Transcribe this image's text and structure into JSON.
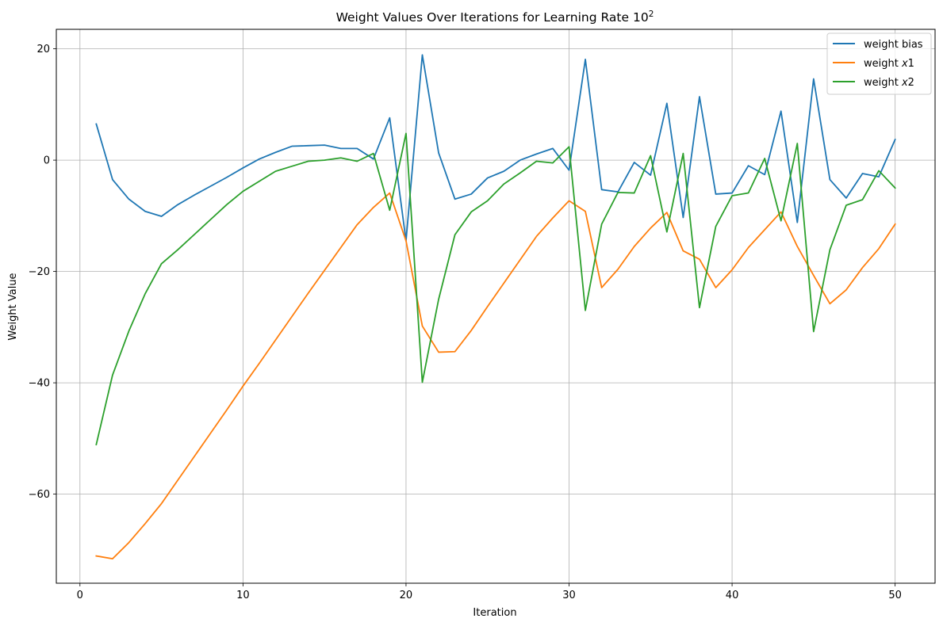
{
  "chart_data": {
    "type": "line",
    "title": "Weight Values Over Iterations for Learning Rate 10",
    "title_superscript": "2",
    "xlabel": "Iteration",
    "ylabel": "Weight Value",
    "xlim": [
      -1.45,
      52.45
    ],
    "ylim": [
      -76,
      23.5
    ],
    "xticks": [
      0,
      10,
      20,
      30,
      40,
      50
    ],
    "yticks": [
      -60,
      -40,
      -20,
      0,
      20
    ],
    "grid": true,
    "legend_position": "top-right",
    "x": [
      1,
      2,
      3,
      4,
      5,
      6,
      7,
      8,
      9,
      10,
      11,
      12,
      13,
      14,
      15,
      16,
      17,
      18,
      19,
      20,
      21,
      22,
      23,
      24,
      25,
      26,
      27,
      28,
      29,
      30,
      31,
      32,
      33,
      34,
      35,
      36,
      37,
      38,
      39,
      40,
      41,
      42,
      43,
      44,
      45,
      46,
      47,
      48,
      49,
      50
    ],
    "series": [
      {
        "name": "weight bias",
        "color": "#1f77b4",
        "values": [
          6.5,
          -3.5,
          -7,
          -9.2,
          -10.1,
          -8,
          -6.3,
          -4.7,
          -3.1,
          -1.4,
          0.2,
          1.4,
          2.5,
          2.6,
          2.7,
          2.1,
          2.1,
          0.2,
          7.6,
          -14.5,
          18.9,
          1.3,
          -7,
          -6.1,
          -3.2,
          -2,
          0,
          1.1,
          2.1,
          -1.8,
          18.1,
          -5.3,
          -5.7,
          -0.4,
          -2.7,
          10.2,
          -10.3,
          11.4,
          -6.1,
          -5.9,
          -1,
          -2.6,
          8.8,
          -11.2,
          14.6,
          -3.5,
          -6.8,
          -2.4,
          -3,
          3.7
        ]
      },
      {
        "name": "weight x1",
        "label_prefix": "weight ",
        "label_italic": "x",
        "label_suffix": "1",
        "color": "#ff7f0e",
        "values": [
          -71.1,
          -71.6,
          -68.7,
          -65.3,
          -61.7,
          -57.5,
          -53.3,
          -49.1,
          -44.9,
          -40.6,
          -36.5,
          -32.3,
          -28.1,
          -23.9,
          -19.8,
          -15.7,
          -11.6,
          -8.5,
          -5.9,
          -14.5,
          -29.8,
          -34.5,
          -34.4,
          -30.6,
          -26.3,
          -22.1,
          -17.9,
          -13.7,
          -10.4,
          -7.3,
          -9.2,
          -22.9,
          -19.6,
          -15.5,
          -12.2,
          -9.4,
          -16.3,
          -17.8,
          -22.9,
          -19.7,
          -15.7,
          -12.5,
          -9.3,
          -15.5,
          -20.7,
          -25.8,
          -23.3,
          -19.3,
          -15.9,
          -11.5
        ]
      },
      {
        "name": "weight x2",
        "label_prefix": "weight ",
        "label_italic": "x",
        "label_suffix": "2",
        "color": "#2ca02c",
        "values": [
          -51.1,
          -38.6,
          -30.7,
          -24,
          -18.6,
          -16.1,
          -13.4,
          -10.7,
          -8,
          -5.6,
          -3.8,
          -2,
          -1.1,
          -0.2,
          0,
          0.4,
          -0.2,
          1.2,
          -9,
          4.8,
          -39.9,
          -25,
          -13.4,
          -9.3,
          -7.3,
          -4.3,
          -2.3,
          -0.2,
          -0.5,
          2.4,
          -27,
          -11.5,
          -5.8,
          -5.9,
          0.8,
          -12.9,
          1.2,
          -26.5,
          -11.9,
          -6.4,
          -5.9,
          0.3,
          -10.9,
          3,
          -30.8,
          -16.1,
          -8.1,
          -7.1,
          -1.9,
          -5
        ]
      }
    ]
  }
}
